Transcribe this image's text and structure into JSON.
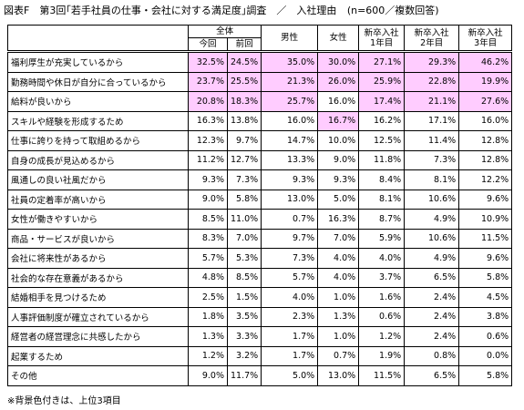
{
  "title": "図表F　第3回｢若手社員の仕事・会社に対する満足度｣調査　／　入社理由",
  "subtitle": "(n=600／複数回答)",
  "header": {
    "total": "全体",
    "current": "今回",
    "previous": "前回",
    "male": "男性",
    "female": "女性",
    "year1": [
      "新卒入社",
      "1年目"
    ],
    "year2": [
      "新卒入社",
      "2年目"
    ],
    "year3": [
      "新卒入社",
      "3年目"
    ]
  },
  "table": {
    "rows": [
      {
        "label": "福利厚生が充実しているから",
        "cells": [
          "32.5%",
          "24.5%",
          "35.0%",
          "30.0%",
          "27.1%",
          "29.3%",
          "46.2%"
        ],
        "highlight": [
          true,
          true,
          true,
          true,
          true,
          true,
          true
        ]
      },
      {
        "label": "勤務時間や休日が自分に合っているから",
        "cells": [
          "23.7%",
          "25.5%",
          "21.3%",
          "26.0%",
          "25.9%",
          "22.8%",
          "19.9%"
        ],
        "highlight": [
          true,
          true,
          true,
          true,
          true,
          true,
          true
        ]
      },
      {
        "label": "給料が良いから",
        "cells": [
          "20.8%",
          "18.3%",
          "25.7%",
          "16.0%",
          "17.4%",
          "21.1%",
          "27.6%"
        ],
        "highlight": [
          true,
          true,
          true,
          false,
          true,
          true,
          true
        ]
      },
      {
        "label": "スキルや経験を形成するため",
        "cells": [
          "16.3%",
          "13.8%",
          "16.0%",
          "16.7%",
          "16.2%",
          "17.1%",
          "16.0%"
        ],
        "highlight": [
          false,
          false,
          false,
          true,
          false,
          false,
          false
        ]
      },
      {
        "label": "仕事に誇りを持って取組めるから",
        "cells": [
          "12.3%",
          "9.7%",
          "14.7%",
          "10.0%",
          "12.5%",
          "11.4%",
          "12.8%"
        ]
      },
      {
        "label": "自身の成長が見込めるから",
        "cells": [
          "11.2%",
          "12.7%",
          "13.3%",
          "9.0%",
          "11.8%",
          "7.3%",
          "12.8%"
        ]
      },
      {
        "label": "風通しの良い社風だから",
        "cells": [
          "9.3%",
          "7.3%",
          "9.3%",
          "9.3%",
          "8.4%",
          "8.1%",
          "12.2%"
        ]
      },
      {
        "label": "社員の定着率が高いから",
        "cells": [
          "9.0%",
          "5.8%",
          "13.0%",
          "5.0%",
          "8.1%",
          "10.6%",
          "9.6%"
        ]
      },
      {
        "label": "女性が働きやすいから",
        "cells": [
          "8.5%",
          "11.0%",
          "0.7%",
          "16.3%",
          "8.7%",
          "4.9%",
          "10.9%"
        ]
      },
      {
        "label": "商品・サービスが良いから",
        "cells": [
          "8.3%",
          "7.0%",
          "9.7%",
          "7.0%",
          "5.9%",
          "10.6%",
          "11.5%"
        ]
      },
      {
        "label": "会社に将来性があるから",
        "cells": [
          "5.7%",
          "5.3%",
          "7.3%",
          "4.0%",
          "4.0%",
          "4.9%",
          "9.6%"
        ]
      },
      {
        "label": "社会的な存在意義があるから",
        "cells": [
          "4.8%",
          "8.5%",
          "5.7%",
          "4.0%",
          "3.7%",
          "6.5%",
          "5.8%"
        ]
      },
      {
        "label": "結婚相手を見つけるため",
        "cells": [
          "2.5%",
          "1.5%",
          "4.0%",
          "1.0%",
          "1.6%",
          "2.4%",
          "4.5%"
        ]
      },
      {
        "label": "人事評価制度が確立されているから",
        "cells": [
          "1.8%",
          "3.5%",
          "2.3%",
          "1.3%",
          "0.6%",
          "2.4%",
          "3.8%"
        ]
      },
      {
        "label": "経営者の経営理念に共感したから",
        "cells": [
          "1.3%",
          "3.3%",
          "1.7%",
          "1.0%",
          "1.2%",
          "2.4%",
          "0.6%"
        ]
      },
      {
        "label": "起業するため",
        "cells": [
          "1.2%",
          "3.2%",
          "1.7%",
          "0.7%",
          "1.9%",
          "0.8%",
          "0.0%"
        ]
      },
      {
        "label": "その他",
        "cells": [
          "9.0%",
          "11.7%",
          "5.0%",
          "13.0%",
          "11.5%",
          "6.5%",
          "5.8%"
        ]
      }
    ]
  },
  "footnote": "※背景色付きは、上位3項目"
}
